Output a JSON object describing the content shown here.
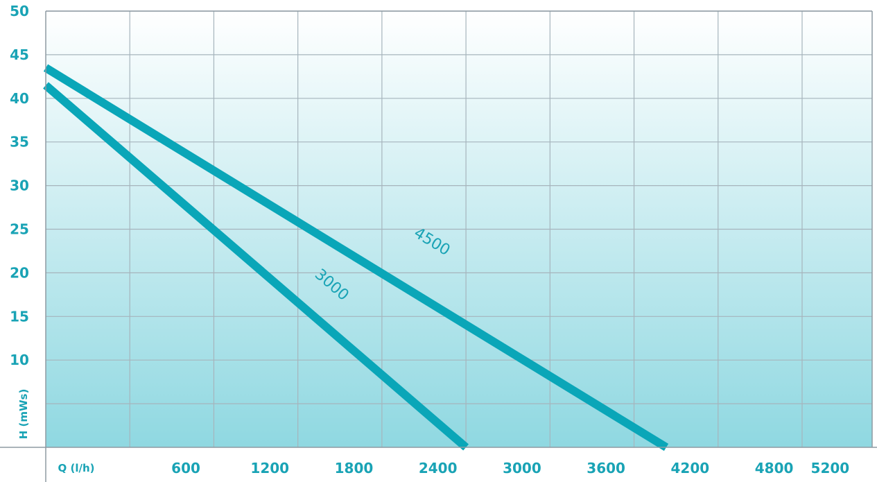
{
  "chart_data": {
    "type": "line",
    "title": "",
    "xlabel": "Q (l/h)",
    "ylabel": "H (mWs)",
    "xlim": [
      -400,
      5500
    ],
    "ylim": [
      0,
      50
    ],
    "x_ticks": [
      600,
      1200,
      1800,
      2400,
      3000,
      3600,
      4200,
      4800,
      5200
    ],
    "y_ticks": [
      10,
      15,
      20,
      25,
      30,
      35,
      40,
      45,
      50
    ],
    "x_gridlines": [
      200,
      800,
      1400,
      2000,
      2600,
      3200,
      3800,
      4400,
      5000
    ],
    "y_gridlines": [
      5,
      10,
      15,
      20,
      25,
      30,
      35,
      40,
      45,
      50
    ],
    "grid": true,
    "legend": "none",
    "series": [
      {
        "name": "3000",
        "points": [
          [
            -400,
            41.5
          ],
          [
            2600,
            0
          ]
        ]
      },
      {
        "name": "4500",
        "points": [
          [
            -400,
            43.5
          ],
          [
            4030,
            0
          ]
        ]
      }
    ],
    "annotations": [
      {
        "text": "3000",
        "x": 1620,
        "y": 18.2,
        "series": "3000"
      },
      {
        "text": "4500",
        "x": 2340,
        "y": 23.1,
        "series": "4500"
      }
    ]
  },
  "colors": {
    "line": "#0aa6b8",
    "text": "#19a3b5",
    "grid": "#a6b4bc",
    "frame": "#8d9aa2",
    "bg_top": "#ffffff",
    "bg_bottom": "#8fd8e1"
  }
}
